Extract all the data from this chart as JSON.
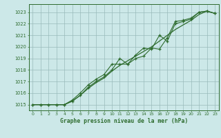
{
  "title": "Graphe pression niveau de la mer (hPa)",
  "background_color": "#cce8e8",
  "grid_color": "#99bbbb",
  "line_color": "#2d6b2d",
  "xlim": [
    -0.5,
    23.5
  ],
  "ylim": [
    1014.5,
    1023.7
  ],
  "xticks": [
    0,
    1,
    2,
    3,
    4,
    5,
    6,
    7,
    8,
    9,
    10,
    11,
    12,
    13,
    14,
    15,
    16,
    17,
    18,
    19,
    20,
    21,
    22,
    23
  ],
  "yticks": [
    1015,
    1016,
    1017,
    1018,
    1019,
    1020,
    1021,
    1022,
    1023
  ],
  "series1_x": [
    0,
    1,
    2,
    3,
    4,
    5,
    6,
    7,
    8,
    9,
    10,
    11,
    12,
    13,
    14,
    15,
    16,
    17,
    18,
    19,
    20,
    21,
    22,
    23
  ],
  "series1_y": [
    1015.0,
    1015.0,
    1015.0,
    1015.0,
    1015.0,
    1015.4,
    1016.0,
    1016.7,
    1017.2,
    1017.6,
    1018.5,
    1018.5,
    1018.5,
    1019.0,
    1019.2,
    1019.9,
    1019.8,
    1020.8,
    1022.2,
    1022.3,
    1022.5,
    1023.0,
    1023.1,
    1022.9
  ],
  "series2_x": [
    0,
    1,
    2,
    3,
    4,
    5,
    6,
    7,
    8,
    9,
    10,
    11,
    12,
    13,
    14,
    15,
    16,
    17,
    18,
    19,
    20,
    21,
    22,
    23
  ],
  "series2_y": [
    1015.0,
    1015.0,
    1015.0,
    1015.0,
    1015.0,
    1015.3,
    1015.8,
    1016.5,
    1017.0,
    1017.4,
    1018.0,
    1019.0,
    1018.5,
    1019.3,
    1019.9,
    1019.8,
    1021.0,
    1020.5,
    1022.0,
    1022.2,
    1022.4,
    1023.0,
    1023.1,
    1022.9
  ],
  "series3_x": [
    0,
    1,
    2,
    3,
    4,
    5,
    6,
    7,
    8,
    9,
    10,
    11,
    12,
    13,
    14,
    15,
    16,
    17,
    18,
    19,
    20,
    21,
    22,
    23
  ],
  "series3_y": [
    1015.0,
    1015.0,
    1015.0,
    1015.0,
    1015.0,
    1015.3,
    1015.8,
    1016.4,
    1016.9,
    1017.3,
    1017.9,
    1018.4,
    1018.8,
    1019.2,
    1019.6,
    1020.0,
    1020.5,
    1021.0,
    1021.5,
    1021.9,
    1022.3,
    1022.8,
    1023.1,
    1022.9
  ]
}
